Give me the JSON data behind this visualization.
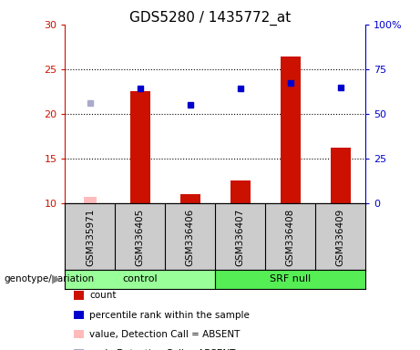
{
  "title": "GDS5280 / 1435772_at",
  "samples": [
    "GSM335971",
    "GSM336405",
    "GSM336406",
    "GSM336407",
    "GSM336408",
    "GSM336409"
  ],
  "bar_values": [
    null,
    22.5,
    11.0,
    12.5,
    26.4,
    16.2
  ],
  "bar_absent": [
    10.7,
    null,
    null,
    null,
    null,
    null
  ],
  "dot_values": [
    null,
    22.8,
    21.0,
    22.8,
    23.5,
    22.9
  ],
  "dot_absent": [
    21.2,
    null,
    null,
    null,
    null,
    null
  ],
  "ylim_left": [
    10,
    30
  ],
  "ylim_right": [
    0,
    100
  ],
  "yticks_left": [
    10,
    15,
    20,
    25,
    30
  ],
  "yticks_right": [
    0,
    25,
    50,
    75,
    100
  ],
  "ytick_right_labels": [
    "0",
    "25",
    "50",
    "75",
    "100%"
  ],
  "bar_color": "#cc1100",
  "bar_absent_color": "#ffbbbb",
  "dot_color": "#0000cc",
  "dot_absent_color": "#aaaacc",
  "control_color": "#99ff99",
  "srf_color": "#55ee55",
  "bg_color": "#cccccc",
  "left_axis_color": "#cc1100",
  "right_axis_color": "#0000cc",
  "legend_items": [
    {
      "label": "count",
      "color": "#cc1100"
    },
    {
      "label": "percentile rank within the sample",
      "color": "#0000cc"
    },
    {
      "label": "value, Detection Call = ABSENT",
      "color": "#ffbbbb"
    },
    {
      "label": "rank, Detection Call = ABSENT",
      "color": "#aaaacc"
    }
  ],
  "bar_width": 0.4,
  "n_control": 3,
  "n_srf": 3
}
